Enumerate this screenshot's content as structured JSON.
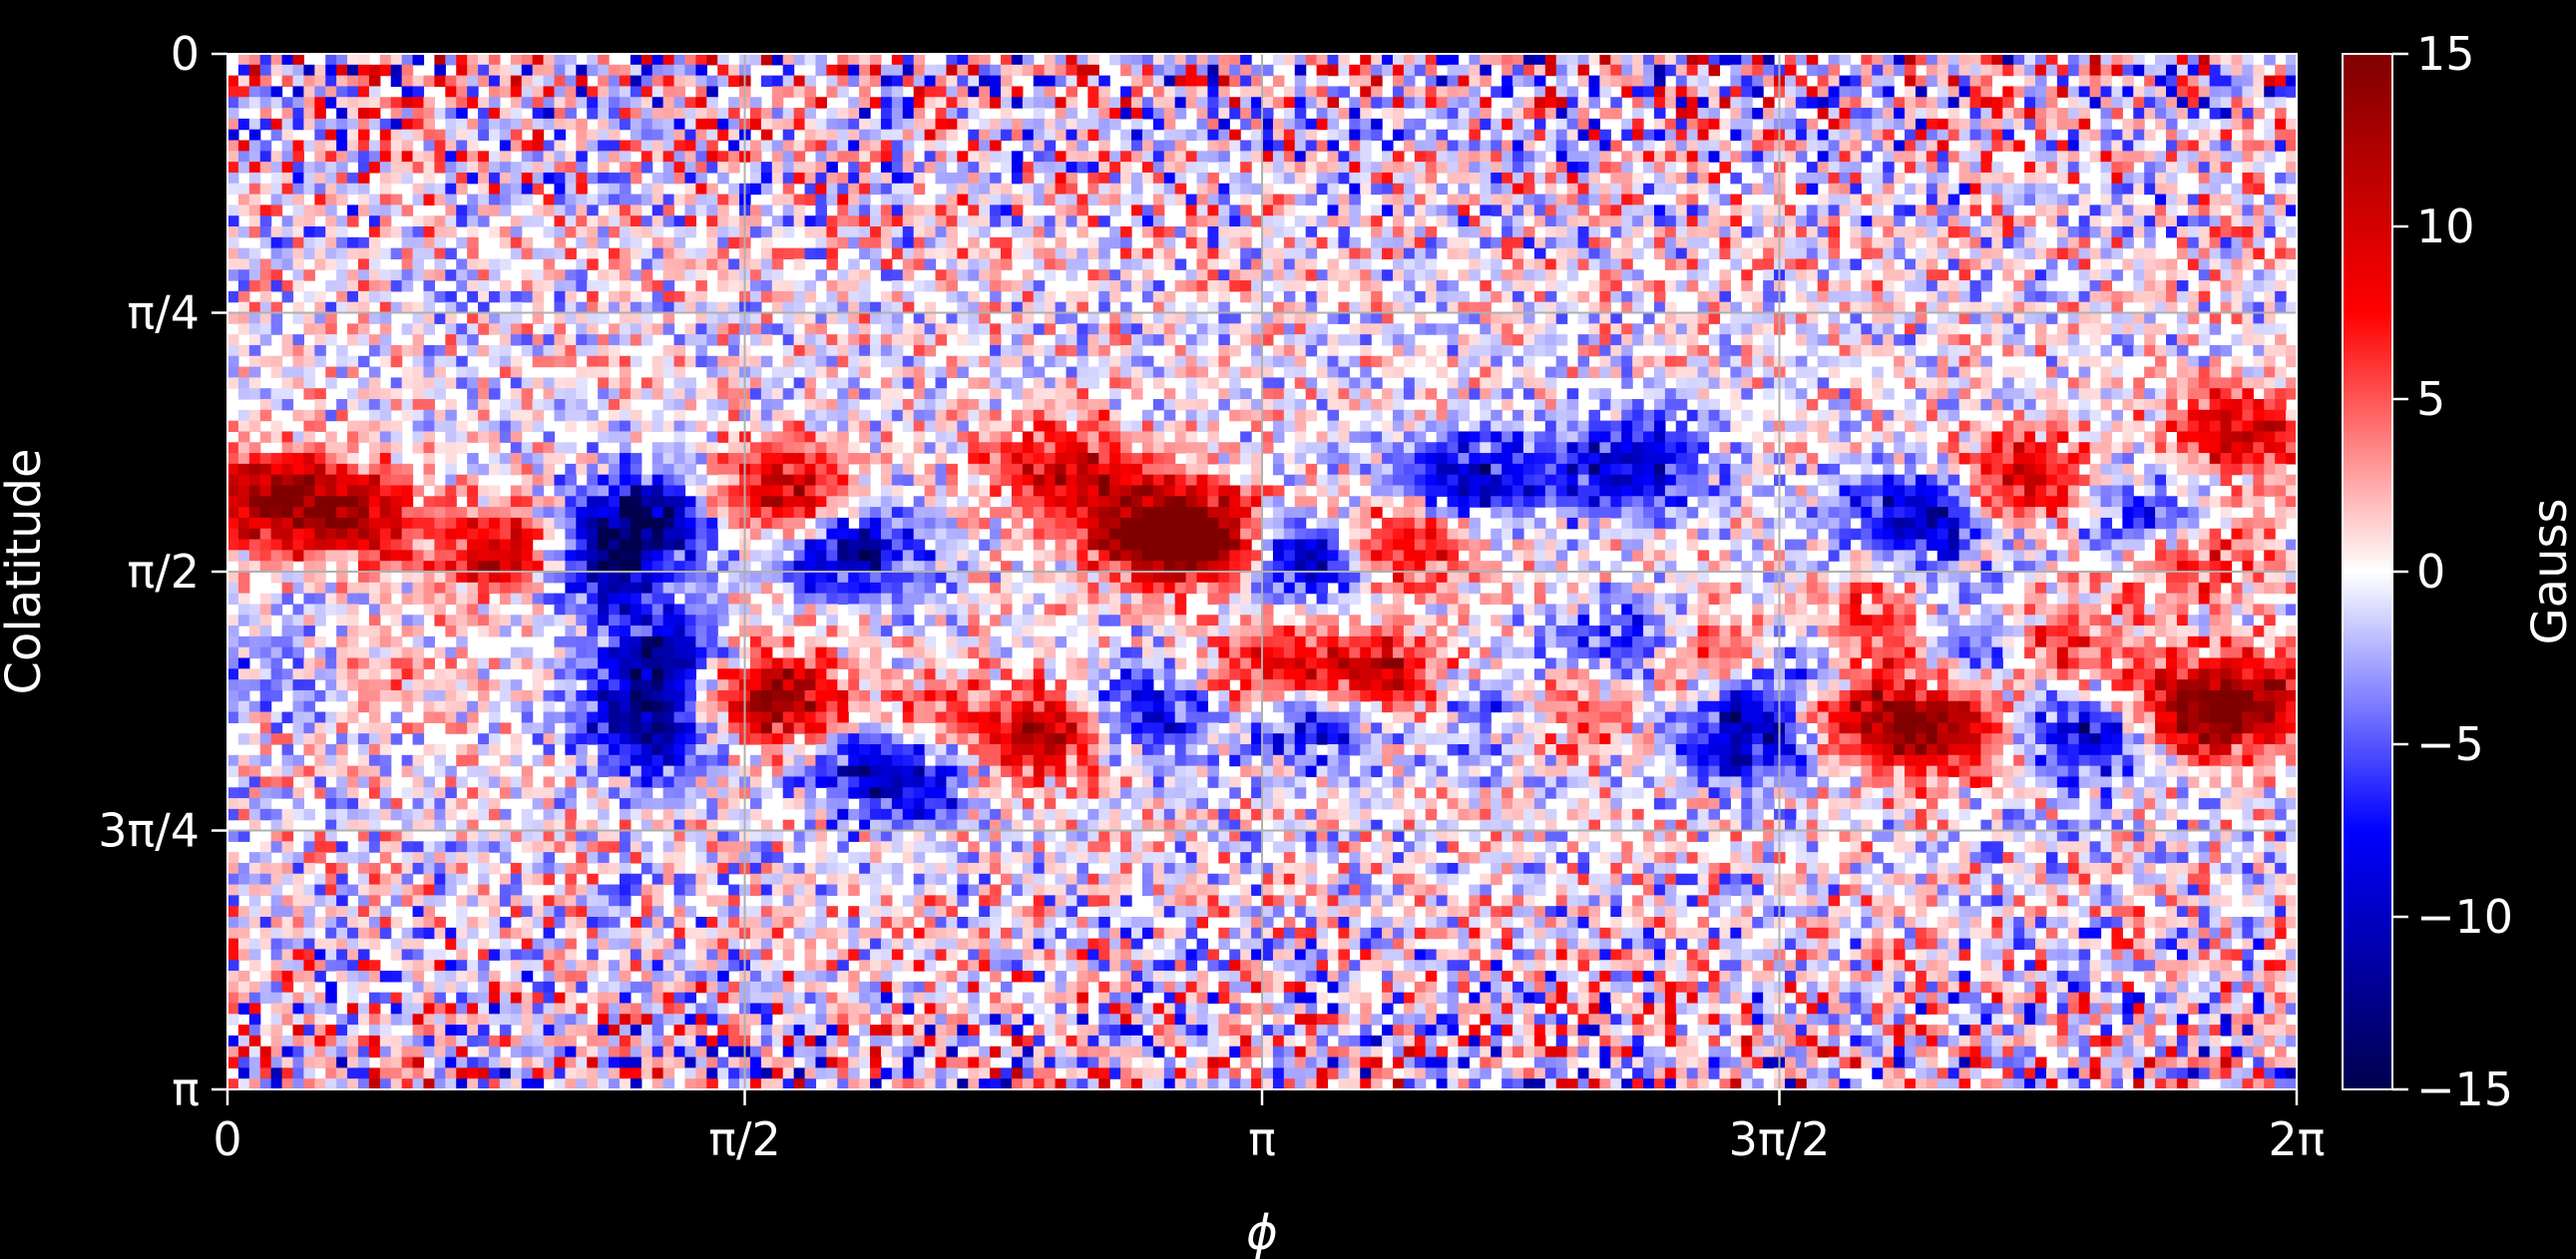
{
  "chart_data": {
    "type": "heatmap",
    "title": "",
    "xlabel": "ϕ",
    "ylabel": "Colatitude",
    "xlim": [
      0,
      6.2832
    ],
    "ylim": [
      0,
      3.1416
    ],
    "y_inverted": true,
    "grid": true,
    "x_ticks": [
      {
        "value": 0,
        "label": "0"
      },
      {
        "value": 1.5708,
        "label": "π/2"
      },
      {
        "value": 3.1416,
        "label": "π"
      },
      {
        "value": 4.7124,
        "label": "3π/2"
      },
      {
        "value": 6.2832,
        "label": "2π"
      }
    ],
    "y_ticks": [
      {
        "value": 0,
        "label": "0"
      },
      {
        "value": 0.7854,
        "label": "π/4"
      },
      {
        "value": 1.5708,
        "label": "π/2"
      },
      {
        "value": 2.3562,
        "label": "3π/4"
      },
      {
        "value": 3.1416,
        "label": "π"
      }
    ],
    "colorbar": {
      "label": "Gauss",
      "range": [
        -15,
        15
      ],
      "ticks": [
        {
          "value": 15,
          "label": "15"
        },
        {
          "value": 10,
          "label": "10"
        },
        {
          "value": 5,
          "label": "5"
        },
        {
          "value": 0,
          "label": "0"
        },
        {
          "value": -5,
          "label": "−5"
        },
        {
          "value": -10,
          "label": "−10"
        },
        {
          "value": -15,
          "label": "−15"
        }
      ],
      "colormap": "seismic",
      "colormap_stops": [
        "#00004d",
        "#0000ff",
        "#ffffff",
        "#ff0000",
        "#800000"
      ]
    },
    "flux_regions": [
      {
        "phi": 0.12,
        "theta": 1.35,
        "sign": 1,
        "strength": 12
      },
      {
        "phi": 0.38,
        "theta": 1.4,
        "sign": 1,
        "strength": 11
      },
      {
        "phi": 0.9,
        "theta": 1.52,
        "sign": 1,
        "strength": 15
      },
      {
        "phi": 1.1,
        "theta": 1.55,
        "sign": -1,
        "strength": 15
      },
      {
        "phi": 1.25,
        "theta": 1.4,
        "sign": -1,
        "strength": 12
      },
      {
        "phi": 1.7,
        "theta": 1.33,
        "sign": 1,
        "strength": 12
      },
      {
        "phi": 1.9,
        "theta": 1.5,
        "sign": -1,
        "strength": 12
      },
      {
        "phi": 2.55,
        "theta": 1.25,
        "sign": 1,
        "strength": 10
      },
      {
        "phi": 2.8,
        "theta": 1.45,
        "sign": 1,
        "strength": 13
      },
      {
        "phi": 3.0,
        "theta": 1.48,
        "sign": 1,
        "strength": 15
      },
      {
        "phi": 3.25,
        "theta": 1.52,
        "sign": -1,
        "strength": 15
      },
      {
        "phi": 3.55,
        "theta": 1.48,
        "sign": 1,
        "strength": 12
      },
      {
        "phi": 3.75,
        "theta": 1.3,
        "sign": -1,
        "strength": 11
      },
      {
        "phi": 4.25,
        "theta": 1.25,
        "sign": -1,
        "strength": 10
      },
      {
        "phi": 5.15,
        "theta": 1.4,
        "sign": -1,
        "strength": 12
      },
      {
        "phi": 5.45,
        "theta": 1.3,
        "sign": 1,
        "strength": 11
      },
      {
        "phi": 5.85,
        "theta": 1.42,
        "sign": -1,
        "strength": 13
      },
      {
        "phi": 5.95,
        "theta": 1.5,
        "sign": 1,
        "strength": 12
      },
      {
        "phi": 6.1,
        "theta": 1.15,
        "sign": 1,
        "strength": 11
      },
      {
        "phi": 0.25,
        "theta": 1.86,
        "sign": -1,
        "strength": 10
      },
      {
        "phi": 0.35,
        "theta": 1.86,
        "sign": 1,
        "strength": 9
      },
      {
        "phi": 1.35,
        "theta": 1.85,
        "sign": -1,
        "strength": 15
      },
      {
        "phi": 1.3,
        "theta": 2.05,
        "sign": -1,
        "strength": 13
      },
      {
        "phi": 1.52,
        "theta": 1.92,
        "sign": 1,
        "strength": 12
      },
      {
        "phi": 1.75,
        "theta": 2.0,
        "sign": 1,
        "strength": 14
      },
      {
        "phi": 1.9,
        "theta": 2.05,
        "sign": -1,
        "strength": 14
      },
      {
        "phi": 2.05,
        "theta": 2.05,
        "sign": 1,
        "strength": 12
      },
      {
        "phi": 2.05,
        "theta": 2.18,
        "sign": -1,
        "strength": 12
      },
      {
        "phi": 2.5,
        "theta": 2.05,
        "sign": 1,
        "strength": 14
      },
      {
        "phi": 2.75,
        "theta": 2.0,
        "sign": -1,
        "strength": 11
      },
      {
        "phi": 3.2,
        "theta": 1.9,
        "sign": 1,
        "strength": 12
      },
      {
        "phi": 3.3,
        "theta": 2.0,
        "sign": -1,
        "strength": 14
      },
      {
        "phi": 3.5,
        "theta": 1.9,
        "sign": 1,
        "strength": 13
      },
      {
        "phi": 3.88,
        "theta": 1.98,
        "sign": -1,
        "strength": 12
      },
      {
        "phi": 4.02,
        "theta": 1.98,
        "sign": 1,
        "strength": 12
      },
      {
        "phi": 4.3,
        "theta": 1.8,
        "sign": -1,
        "strength": 13
      },
      {
        "phi": 4.45,
        "theta": 1.82,
        "sign": 1,
        "strength": 12
      },
      {
        "phi": 4.65,
        "theta": 2.05,
        "sign": -1,
        "strength": 13
      },
      {
        "phi": 4.85,
        "theta": 1.85,
        "sign": -1,
        "strength": 14
      },
      {
        "phi": 4.92,
        "theta": 2.0,
        "sign": 1,
        "strength": 13
      },
      {
        "phi": 4.98,
        "theta": 1.78,
        "sign": 1,
        "strength": 14
      },
      {
        "phi": 5.2,
        "theta": 2.05,
        "sign": 1,
        "strength": 12
      },
      {
        "phi": 5.35,
        "theta": 1.8,
        "sign": -1,
        "strength": 13
      },
      {
        "phi": 5.5,
        "theta": 1.8,
        "sign": 1,
        "strength": 13
      },
      {
        "phi": 5.68,
        "theta": 2.05,
        "sign": -1,
        "strength": 13
      },
      {
        "phi": 5.92,
        "theta": 2.0,
        "sign": 1,
        "strength": 14
      },
      {
        "phi": 6.15,
        "theta": 1.95,
        "sign": 1,
        "strength": 10
      }
    ]
  }
}
